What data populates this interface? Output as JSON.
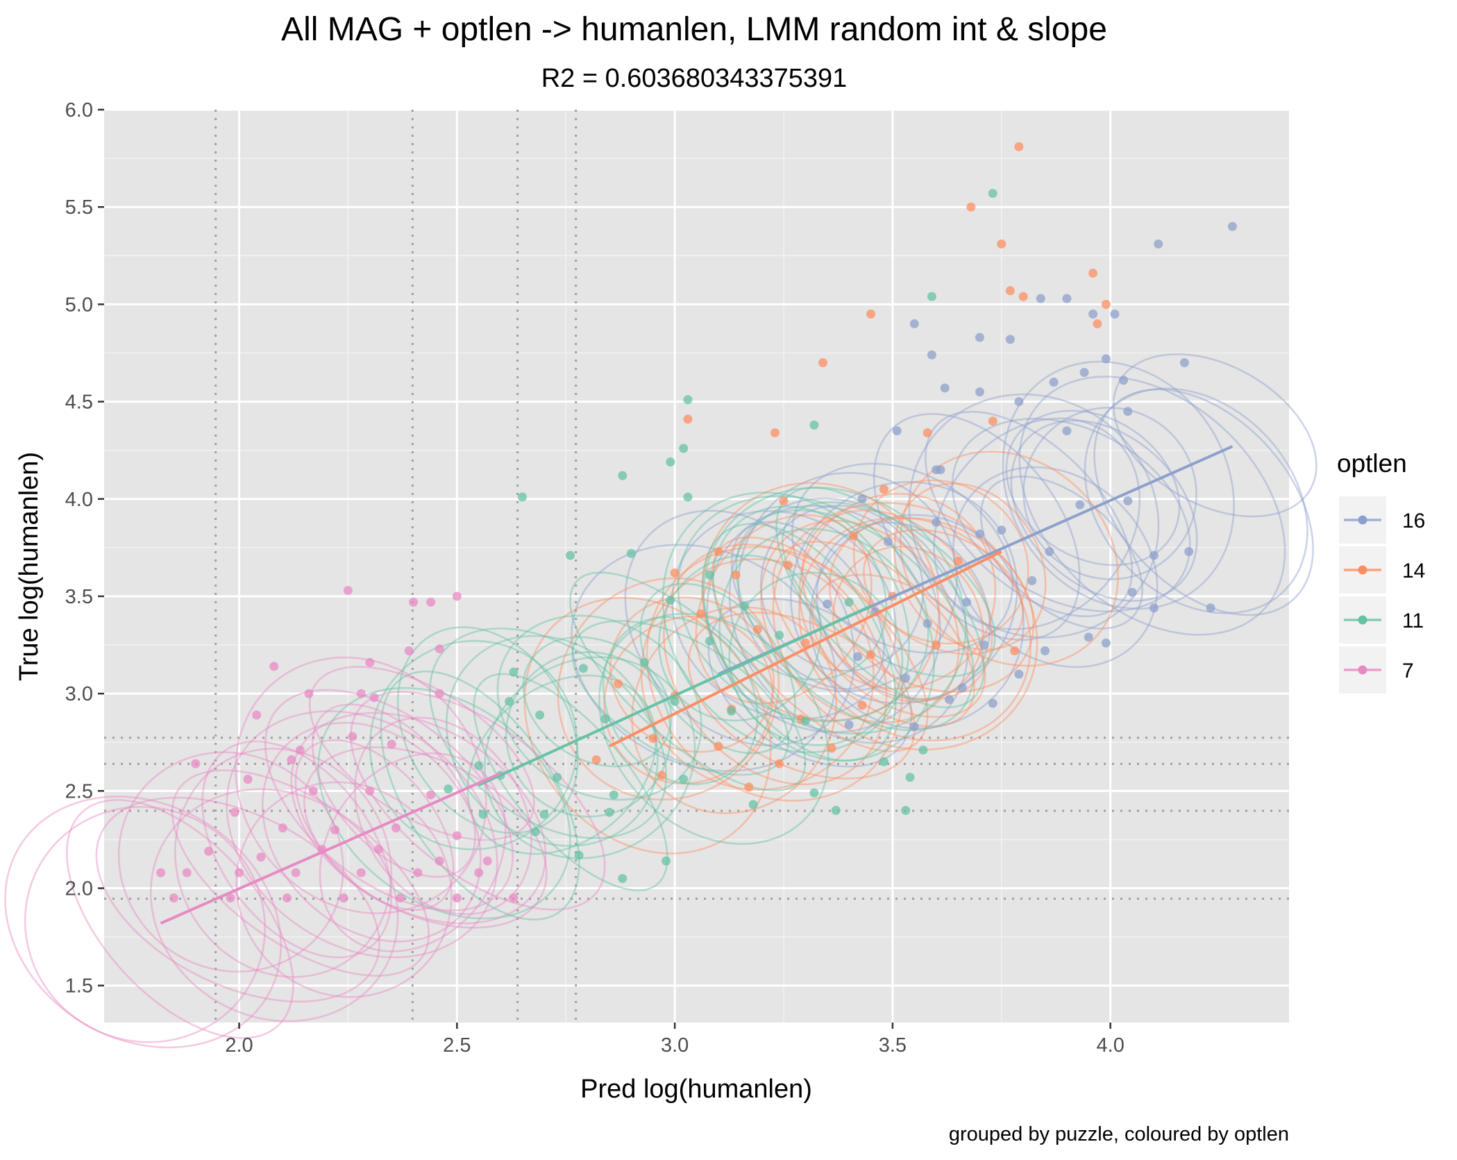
{
  "chart_data": {
    "type": "scatter",
    "title": "All MAG + optlen -> humanlen, LMM random int & slope",
    "subtitle": "R2 = 0.603680343375391",
    "xlabel": "Pred log(humanlen)",
    "ylabel": "True log(humanlen)",
    "caption": "grouped by puzzle, coloured by optlen",
    "xlim": [
      1.69,
      4.41
    ],
    "ylim": [
      1.31,
      6.0
    ],
    "x_ticks": [
      "2.0",
      "2.5",
      "3.0",
      "3.5",
      "4.0"
    ],
    "y_ticks": [
      "1.5",
      "2.0",
      "2.5",
      "3.0",
      "3.5",
      "4.0",
      "4.5",
      "5.0",
      "5.5",
      "6.0"
    ],
    "grid": true,
    "reference_lines": {
      "vertical": [
        1.946,
        2.398,
        2.639,
        2.773
      ],
      "horizontal": [
        1.946,
        2.398,
        2.639,
        2.773
      ]
    },
    "legend": {
      "title": "optlen",
      "position": "right",
      "entries": [
        {
          "label": "16",
          "color": "#8da0cb"
        },
        {
          "label": "14",
          "color": "#fc8d62"
        },
        {
          "label": "11",
          "color": "#66c2a5"
        },
        {
          "label": "7",
          "color": "#e78ac3"
        }
      ]
    },
    "series": [
      {
        "name": "16",
        "color": "#8da0cb",
        "fit_line": [
          [
            3.1,
            3.1
          ],
          [
            4.28,
            4.27
          ]
        ],
        "ellipse_count": 28,
        "points": [
          [
            4.28,
            5.4
          ],
          [
            4.11,
            5.31
          ],
          [
            4.17,
            4.7
          ],
          [
            3.96,
            4.95
          ],
          [
            4.01,
            4.95
          ],
          [
            3.9,
            5.03
          ],
          [
            3.84,
            5.03
          ],
          [
            3.7,
            4.83
          ],
          [
            3.77,
            4.82
          ],
          [
            3.55,
            4.9
          ],
          [
            3.59,
            4.74
          ],
          [
            3.94,
            4.65
          ],
          [
            3.87,
            4.6
          ],
          [
            3.62,
            4.57
          ],
          [
            3.7,
            4.55
          ],
          [
            3.79,
            4.5
          ],
          [
            3.99,
            4.72
          ],
          [
            4.03,
            4.61
          ],
          [
            4.04,
            4.45
          ],
          [
            3.51,
            4.35
          ],
          [
            3.61,
            4.15
          ],
          [
            3.43,
            4.0
          ],
          [
            3.93,
            3.97
          ],
          [
            4.04,
            3.99
          ],
          [
            4.18,
            3.73
          ],
          [
            3.6,
            3.88
          ],
          [
            3.49,
            3.78
          ],
          [
            3.7,
            3.82
          ],
          [
            3.82,
            3.58
          ],
          [
            3.35,
            3.46
          ],
          [
            3.46,
            3.42
          ],
          [
            3.58,
            3.36
          ],
          [
            3.67,
            3.47
          ],
          [
            3.71,
            3.25
          ],
          [
            3.85,
            3.22
          ],
          [
            3.42,
            3.19
          ],
          [
            3.53,
            3.08
          ],
          [
            3.79,
            3.1
          ],
          [
            3.95,
            3.29
          ],
          [
            3.99,
            3.26
          ],
          [
            3.63,
            2.97
          ],
          [
            3.73,
            2.95
          ],
          [
            3.4,
            2.84
          ],
          [
            4.1,
            3.44
          ],
          [
            4.23,
            3.44
          ],
          [
            4.05,
            3.52
          ],
          [
            4.1,
            3.71
          ],
          [
            3.55,
            2.83
          ],
          [
            3.66,
            3.03
          ],
          [
            3.86,
            3.73
          ],
          [
            3.75,
            3.84
          ],
          [
            3.9,
            4.35
          ],
          [
            3.6,
            4.15
          ]
        ]
      },
      {
        "name": "14",
        "color": "#fc8d62",
        "fit_line": [
          [
            2.85,
            2.73
          ],
          [
            3.75,
            3.73
          ]
        ],
        "ellipse_count": 25,
        "points": [
          [
            3.79,
            5.81
          ],
          [
            3.68,
            5.5
          ],
          [
            3.75,
            5.31
          ],
          [
            3.77,
            5.07
          ],
          [
            3.96,
            5.16
          ],
          [
            3.8,
            5.04
          ],
          [
            3.99,
            5.0
          ],
          [
            3.97,
            4.9
          ],
          [
            3.45,
            4.95
          ],
          [
            3.34,
            4.7
          ],
          [
            3.03,
            4.41
          ],
          [
            3.23,
            4.34
          ],
          [
            3.73,
            4.4
          ],
          [
            3.58,
            4.34
          ],
          [
            3.1,
            3.73
          ],
          [
            3.26,
            3.66
          ],
          [
            3.25,
            3.99
          ],
          [
            3.41,
            3.81
          ],
          [
            3.5,
            3.5
          ],
          [
            3.65,
            3.68
          ],
          [
            3.06,
            3.41
          ],
          [
            3.19,
            3.33
          ],
          [
            3.3,
            3.26
          ],
          [
            3.45,
            3.2
          ],
          [
            3.6,
            3.25
          ],
          [
            3.78,
            3.22
          ],
          [
            2.87,
            3.05
          ],
          [
            3.0,
            2.99
          ],
          [
            3.13,
            2.92
          ],
          [
            3.29,
            2.87
          ],
          [
            3.43,
            2.94
          ],
          [
            2.95,
            2.77
          ],
          [
            3.1,
            2.73
          ],
          [
            3.24,
            2.64
          ],
          [
            3.36,
            2.72
          ],
          [
            2.82,
            2.66
          ],
          [
            2.97,
            2.58
          ],
          [
            3.17,
            2.52
          ],
          [
            3.0,
            3.62
          ],
          [
            3.14,
            3.61
          ],
          [
            3.48,
            4.05
          ]
        ]
      },
      {
        "name": "11",
        "color": "#66c2a5",
        "fit_line": [
          [
            2.55,
            2.53
          ],
          [
            3.45,
            3.45
          ]
        ],
        "ellipse_count": 28,
        "points": [
          [
            3.73,
            5.57
          ],
          [
            3.59,
            5.04
          ],
          [
            3.03,
            4.51
          ],
          [
            3.02,
            4.26
          ],
          [
            2.99,
            4.19
          ],
          [
            2.65,
            4.01
          ],
          [
            3.03,
            4.01
          ],
          [
            2.88,
            4.12
          ],
          [
            3.32,
            4.38
          ],
          [
            2.9,
            3.72
          ],
          [
            2.76,
            3.71
          ],
          [
            3.08,
            3.61
          ],
          [
            2.99,
            3.48
          ],
          [
            3.16,
            3.45
          ],
          [
            3.4,
            3.47
          ],
          [
            2.63,
            3.11
          ],
          [
            2.79,
            3.13
          ],
          [
            2.93,
            3.16
          ],
          [
            3.08,
            3.27
          ],
          [
            3.24,
            3.3
          ],
          [
            2.62,
            2.96
          ],
          [
            2.69,
            2.89
          ],
          [
            2.84,
            2.87
          ],
          [
            3.0,
            2.96
          ],
          [
            3.13,
            2.91
          ],
          [
            3.3,
            2.86
          ],
          [
            2.55,
            2.63
          ],
          [
            2.6,
            2.58
          ],
          [
            2.73,
            2.57
          ],
          [
            2.86,
            2.48
          ],
          [
            3.02,
            2.56
          ],
          [
            3.18,
            2.43
          ],
          [
            2.48,
            2.51
          ],
          [
            2.56,
            2.38
          ],
          [
            2.7,
            2.38
          ],
          [
            2.85,
            2.39
          ],
          [
            2.68,
            2.29
          ],
          [
            2.78,
            2.17
          ],
          [
            2.88,
            2.05
          ],
          [
            2.98,
            2.14
          ],
          [
            3.32,
            2.49
          ],
          [
            3.37,
            2.4
          ],
          [
            3.53,
            2.4
          ],
          [
            3.54,
            2.57
          ],
          [
            3.48,
            2.65
          ],
          [
            3.57,
            2.71
          ]
        ]
      },
      {
        "name": "7",
        "color": "#e78ac3",
        "fit_line": [
          [
            1.82,
            1.82
          ],
          [
            2.6,
            2.59
          ]
        ],
        "ellipse_count": 22,
        "points": [
          [
            2.25,
            3.53
          ],
          [
            2.5,
            3.5
          ],
          [
            2.4,
            3.47
          ],
          [
            2.44,
            3.47
          ],
          [
            2.08,
            3.14
          ],
          [
            2.46,
            3.23
          ],
          [
            2.39,
            3.22
          ],
          [
            2.3,
            3.16
          ],
          [
            2.16,
            3.0
          ],
          [
            2.28,
            3.0
          ],
          [
            2.46,
            3.0
          ],
          [
            2.31,
            2.98
          ],
          [
            2.04,
            2.89
          ],
          [
            2.14,
            2.71
          ],
          [
            2.26,
            2.78
          ],
          [
            2.35,
            2.74
          ],
          [
            2.12,
            2.66
          ],
          [
            1.9,
            2.64
          ],
          [
            2.02,
            2.56
          ],
          [
            2.17,
            2.5
          ],
          [
            2.3,
            2.5
          ],
          [
            2.44,
            2.48
          ],
          [
            1.99,
            2.39
          ],
          [
            2.1,
            2.31
          ],
          [
            2.22,
            2.3
          ],
          [
            2.36,
            2.31
          ],
          [
            2.5,
            2.27
          ],
          [
            1.93,
            2.19
          ],
          [
            2.05,
            2.16
          ],
          [
            2.19,
            2.2
          ],
          [
            2.32,
            2.2
          ],
          [
            2.46,
            2.14
          ],
          [
            2.57,
            2.14
          ],
          [
            1.82,
            2.08
          ],
          [
            1.88,
            2.08
          ],
          [
            2.0,
            2.08
          ],
          [
            2.13,
            2.08
          ],
          [
            2.28,
            2.08
          ],
          [
            2.41,
            2.08
          ],
          [
            2.55,
            2.08
          ],
          [
            1.85,
            1.95
          ],
          [
            1.98,
            1.95
          ],
          [
            2.11,
            1.95
          ],
          [
            2.24,
            1.95
          ],
          [
            2.37,
            1.95
          ],
          [
            2.5,
            1.95
          ],
          [
            2.63,
            1.95
          ]
        ]
      }
    ]
  }
}
